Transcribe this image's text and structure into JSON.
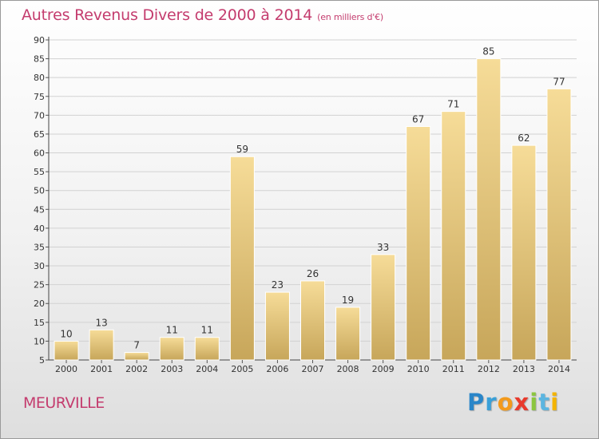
{
  "header": {
    "title": "Autres Revenus Divers de 2000 à 2014",
    "unit": "(en milliers d'€)"
  },
  "footer": {
    "city": "MEURVILLE",
    "logo_letters": [
      "P",
      "r",
      "o",
      "x",
      "i",
      "t",
      "i"
    ]
  },
  "colors": {
    "accent": "#c43c6e",
    "bar_top": "#f6dc98",
    "bar_bottom": "#c7a65a",
    "axis": "#333333"
  },
  "chart_data": {
    "type": "bar",
    "title": "Autres Revenus Divers de 2000 à 2014",
    "xlabel": "",
    "ylabel": "",
    "categories": [
      "2000",
      "2001",
      "2002",
      "2003",
      "2004",
      "2005",
      "2006",
      "2007",
      "2008",
      "2009",
      "2010",
      "2011",
      "2012",
      "2013",
      "2014"
    ],
    "values": [
      10,
      13,
      7,
      11,
      11,
      59,
      23,
      26,
      19,
      33,
      67,
      71,
      85,
      62,
      77
    ],
    "ylim": [
      5,
      90
    ],
    "yticks": [
      5,
      10,
      15,
      20,
      25,
      30,
      35,
      40,
      45,
      50,
      55,
      60,
      65,
      70,
      75,
      80,
      85,
      90
    ],
    "grid": true,
    "data_labels": true
  }
}
